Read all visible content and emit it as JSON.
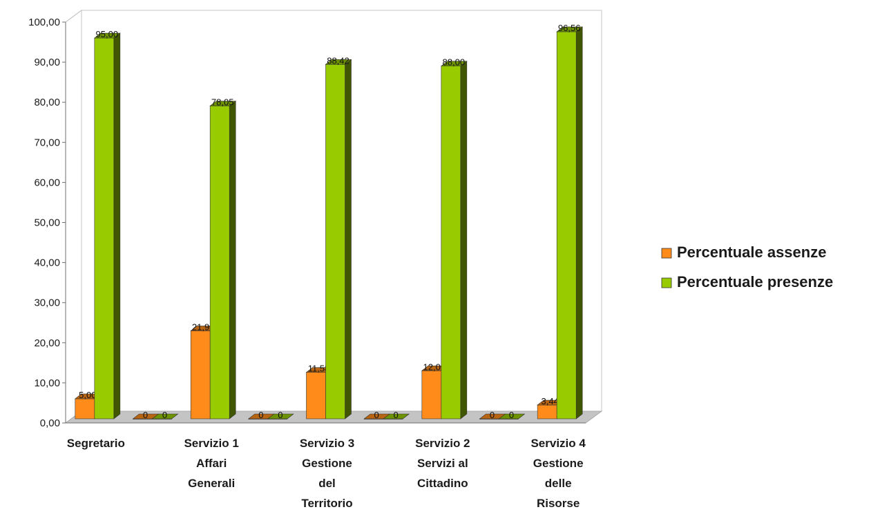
{
  "chart_data": {
    "type": "bar",
    "categories": [
      "Segretario",
      "",
      "Servizio 1\nAffari\nGenerali",
      "",
      "Servizio 3\nGestione\ndel\nTerritorio",
      "",
      "Servizio 2\nServizi al\nCittadino",
      "",
      "Servizio 4\nGestione\ndelle\nRisorse"
    ],
    "series": [
      {
        "name": "Percentuale assenze",
        "color": "#ff8c1a",
        "values": [
          5.0,
          0,
          21.95,
          0,
          11.58,
          0,
          12.0,
          0,
          3.44
        ],
        "labels": [
          "5,00",
          "0",
          "21,95",
          "0",
          "11,58",
          "0",
          "12,00",
          "0",
          "3,44"
        ]
      },
      {
        "name": "Percentuale presenze",
        "color": "#99cc00",
        "values": [
          95.0,
          0,
          78.05,
          0,
          88.42,
          0,
          88.0,
          0,
          96.56
        ],
        "labels": [
          "95,00",
          "0",
          "78,05",
          "0",
          "88,42",
          "0",
          "88,00",
          "0",
          "96,56"
        ]
      }
    ],
    "y_ticks": [
      "0,00",
      "10,00",
      "20,00",
      "30,00",
      "40,00",
      "50,00",
      "60,00",
      "70,00",
      "80,00",
      "90,00",
      "100,00"
    ],
    "ylim": [
      0,
      100
    ],
    "grid": false,
    "legend_position": "right",
    "title": "",
    "xlabel": "",
    "ylabel": ""
  }
}
